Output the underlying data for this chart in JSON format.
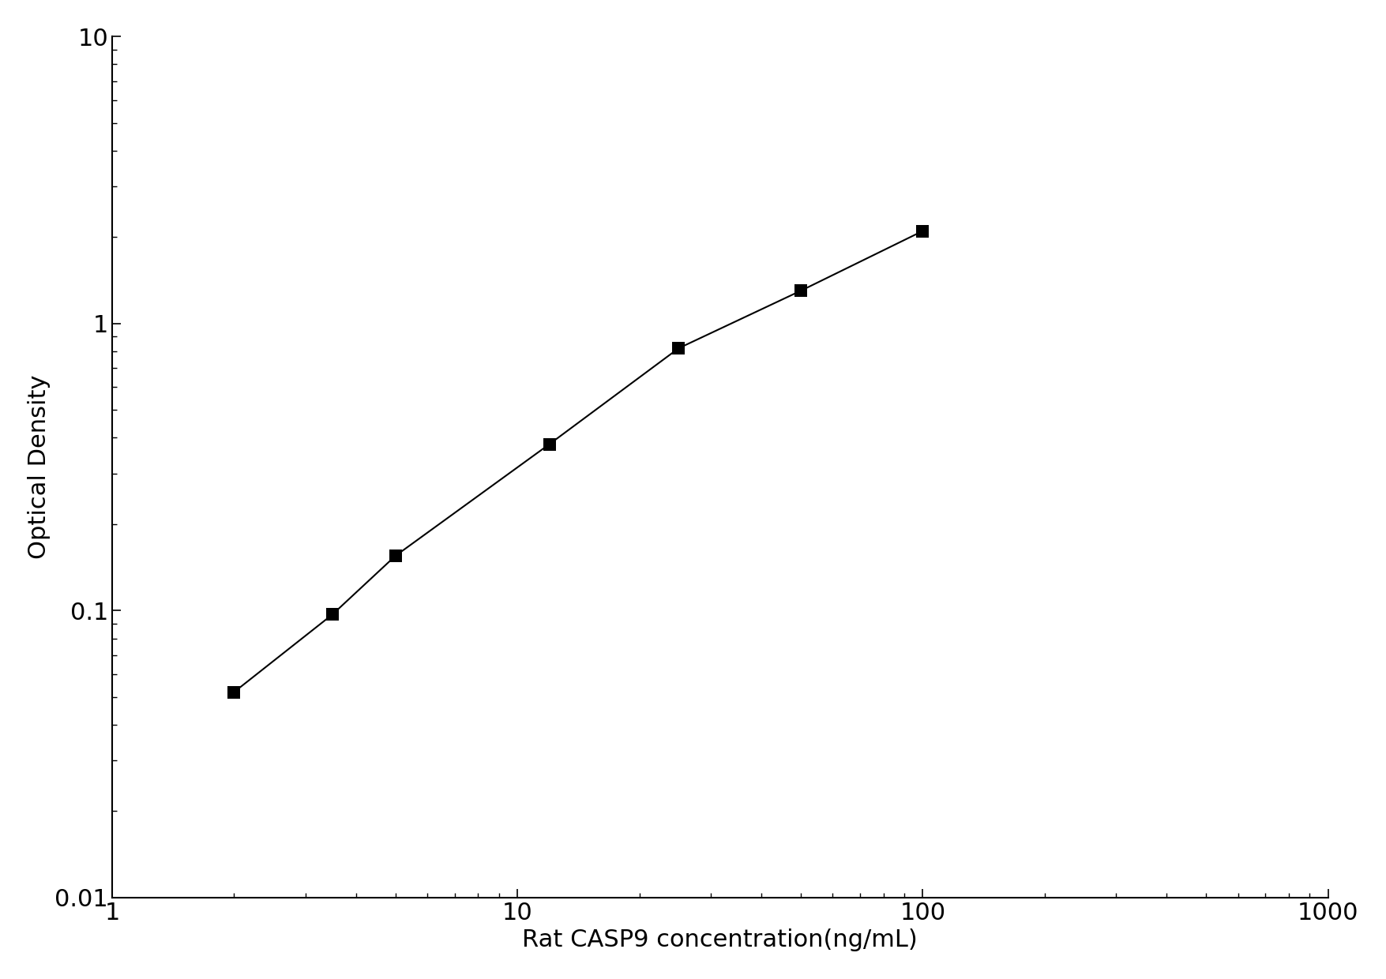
{
  "x_data": [
    2.0,
    3.5,
    5.0,
    12.0,
    25.0,
    50.0,
    100.0
  ],
  "y_data": [
    0.052,
    0.097,
    0.155,
    0.38,
    0.82,
    1.3,
    2.1
  ],
  "xlabel": "Rat CASP9 concentration(ng/mL)",
  "ylabel": "Optical Density",
  "xlim": [
    1,
    1000
  ],
  "ylim": [
    0.01,
    10
  ],
  "line_color": "#000000",
  "marker_color": "#000000",
  "marker_style": "s",
  "marker_size": 11,
  "line_width": 1.5,
  "background_color": "#ffffff",
  "axis_color": "#000000",
  "tick_color": "#000000",
  "label_fontsize": 22,
  "tick_fontsize": 22,
  "curve_x_start": 1.2,
  "curve_x_end": 200.0,
  "ytick_labels": [
    "0.01",
    "0.1",
    "1",
    "10"
  ],
  "ytick_values": [
    0.01,
    0.1,
    1,
    10
  ],
  "xtick_labels": [
    "1",
    "10",
    "100",
    "1000"
  ],
  "xtick_values": [
    1,
    10,
    100,
    1000
  ]
}
